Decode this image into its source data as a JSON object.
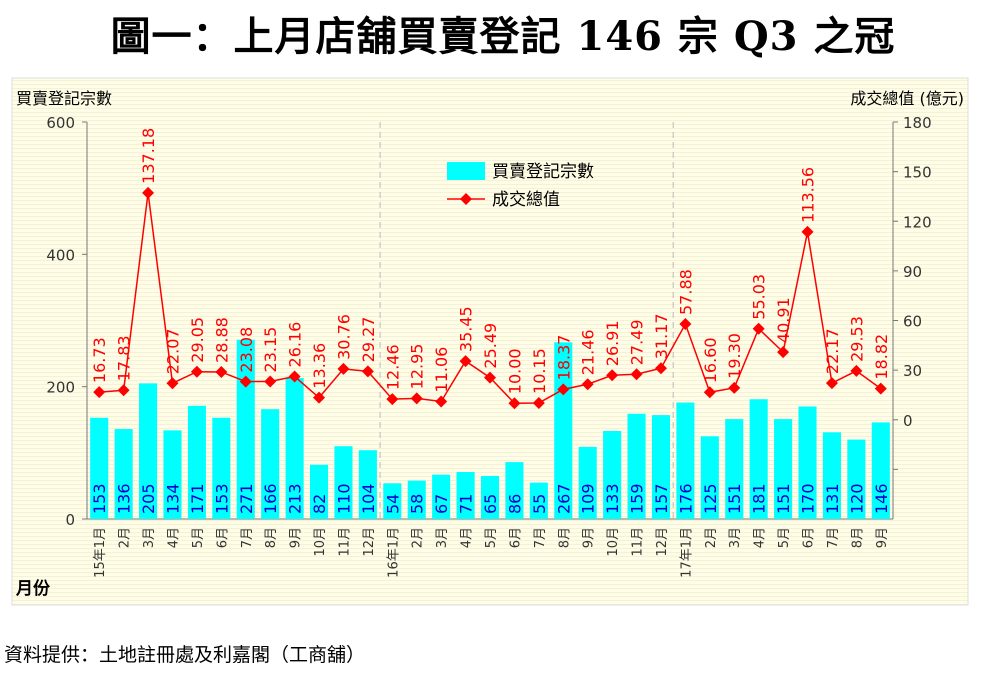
{
  "title": "圖一：上月店舖買賣登記 146 宗  Q3 之冠",
  "source": "資料提供：土地註冊處及利嘉閣（工商舖）",
  "chart_data": {
    "type": "bar+line",
    "ylabel_left": "買賣登記宗數",
    "ylabel_right": "成交總值 (億元)",
    "xlabel": "月份",
    "ylim_left": [
      0,
      600
    ],
    "yticks_left": [
      0,
      200,
      400,
      600
    ],
    "ylim_right": [
      -60,
      180
    ],
    "yticks_right": [
      -30,
      0,
      30,
      60,
      90,
      120,
      150,
      180
    ],
    "yticklabels_right": [
      "",
      "0",
      "30",
      "60",
      "90",
      "120",
      "150",
      "180"
    ],
    "legend_placement": "top-center",
    "categories": [
      "15年1月",
      "2月",
      "3月",
      "4月",
      "5月",
      "6月",
      "7月",
      "8月",
      "9月",
      "10月",
      "11月",
      "12月",
      "16年1月",
      "2月",
      "3月",
      "4月",
      "5月",
      "6月",
      "7月",
      "8月",
      "9月",
      "10月",
      "11月",
      "12月",
      "17年1月",
      "2月",
      "3月",
      "4月",
      "5月",
      "6月",
      "7月",
      "8月",
      "9月"
    ],
    "year_separators_after": [
      "12月"
    ],
    "series": [
      {
        "name": "買賣登記宗數",
        "type": "bar",
        "axis": "left",
        "color": "#00ffff",
        "label_color": "#0000cc",
        "values": [
          153,
          136,
          205,
          134,
          171,
          153,
          271,
          166,
          213,
          82,
          110,
          104,
          54,
          58,
          67,
          71,
          65,
          86,
          55,
          267,
          109,
          133,
          159,
          157,
          176,
          125,
          151,
          181,
          151,
          170,
          131,
          120,
          146
        ]
      },
      {
        "name": "成交總值",
        "type": "line",
        "axis": "right",
        "color": "#ff0000",
        "values": [
          16.73,
          17.83,
          137.18,
          22.07,
          29.05,
          28.88,
          23.08,
          23.15,
          26.16,
          13.36,
          30.76,
          29.27,
          12.46,
          12.95,
          11.06,
          35.45,
          25.49,
          10.0,
          10.15,
          18.37,
          21.46,
          26.91,
          27.49,
          31.17,
          57.88,
          16.6,
          19.3,
          55.03,
          40.91,
          113.56,
          22.17,
          29.53,
          18.82
        ]
      }
    ]
  }
}
